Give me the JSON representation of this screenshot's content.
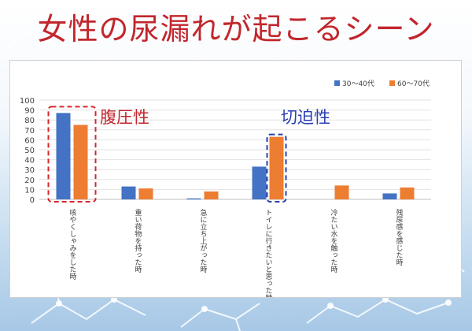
{
  "header": {
    "title": "女性の尿漏れが起こるシーン"
  },
  "annotations": [
    {
      "text": "腹圧性",
      "color": "#c1272d"
    },
    {
      "text": "切迫性",
      "color": "#2a3fb4"
    }
  ],
  "chart_data": {
    "type": "bar",
    "categories": [
      "咳やくしゃみをした時",
      "重い荷物を持った時",
      "急に立ち上がった時",
      "トイレに行きたいと思った時",
      "冷たい水を触った時",
      "残尿感を感じた時"
    ],
    "series": [
      {
        "name": "30～40代",
        "color": "#4472c4",
        "values": [
          87,
          13,
          1,
          33,
          0,
          6
        ]
      },
      {
        "name": "60～70代",
        "color": "#ed7d31",
        "values": [
          75,
          11,
          8,
          63,
          14,
          12
        ]
      }
    ],
    "ylim": [
      0,
      100
    ],
    "yticks": [
      0,
      10,
      20,
      30,
      40,
      50,
      60,
      70,
      80,
      90,
      100
    ],
    "grid": true,
    "legend": "top-right",
    "highlights": [
      {
        "category": 0,
        "series": "both",
        "color": "#d9262b"
      },
      {
        "category": 3,
        "series": 1,
        "color": "#2a3fb4"
      }
    ]
  }
}
